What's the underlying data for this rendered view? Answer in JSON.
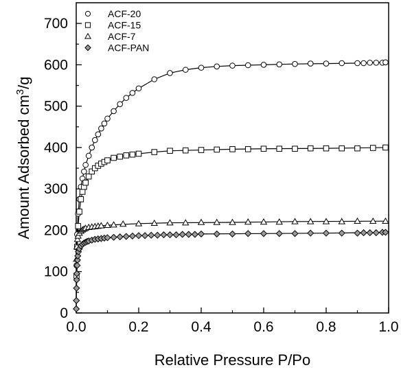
{
  "chart_data": {
    "type": "scatter",
    "xlabel": "Relative Pressure P/Po",
    "ylabel_main": "Amount Adsorbed cm",
    "ylabel_sup": "3",
    "ylabel_tail": "/g",
    "xlim": [
      0.0,
      1.0
    ],
    "ylim": [
      0,
      750
    ],
    "x_ticks": [
      "0.0",
      "0.2",
      "0.4",
      "0.6",
      "0.8",
      "1.0"
    ],
    "y_ticks": [
      "0",
      "100",
      "200",
      "300",
      "400",
      "500",
      "600",
      "700"
    ],
    "legend_position": "top-left",
    "series": [
      {
        "name": "ACF-20",
        "marker": "circle",
        "x": [
          0.001,
          0.003,
          0.006,
          0.01,
          0.015,
          0.02,
          0.025,
          0.03,
          0.04,
          0.05,
          0.06,
          0.07,
          0.08,
          0.09,
          0.1,
          0.12,
          0.14,
          0.16,
          0.18,
          0.2,
          0.25,
          0.3,
          0.35,
          0.4,
          0.45,
          0.5,
          0.55,
          0.6,
          0.65,
          0.7,
          0.75,
          0.8,
          0.85,
          0.9,
          0.92,
          0.94,
          0.96,
          0.98,
          0.99
        ],
        "y": [
          115,
          190,
          240,
          275,
          305,
          325,
          342,
          358,
          380,
          400,
          418,
          432,
          446,
          458,
          470,
          488,
          505,
          520,
          532,
          543,
          565,
          580,
          588,
          593,
          596,
          598,
          599,
          600,
          601,
          602,
          603,
          603,
          604,
          604,
          604,
          605,
          605,
          605,
          606
        ],
        "curve_x": [
          0.001,
          0.003,
          0.006,
          0.01,
          0.015,
          0.02,
          0.025,
          0.03,
          0.04,
          0.05,
          0.06,
          0.07,
          0.08,
          0.09,
          0.1,
          0.12,
          0.14,
          0.16,
          0.18,
          0.2,
          0.25,
          0.3,
          0.35,
          0.4,
          0.45,
          0.5,
          0.55,
          0.6,
          0.7,
          0.8,
          0.9,
          0.99
        ],
        "curve_y": [
          115,
          190,
          240,
          275,
          305,
          325,
          342,
          358,
          380,
          400,
          418,
          432,
          446,
          458,
          470,
          488,
          505,
          520,
          532,
          543,
          565,
          580,
          588,
          593,
          596,
          598,
          599,
          600,
          602,
          603,
          604,
          606
        ]
      },
      {
        "name": "ACF-15",
        "marker": "square",
        "x": [
          0.001,
          0.003,
          0.006,
          0.01,
          0.015,
          0.02,
          0.025,
          0.03,
          0.04,
          0.05,
          0.06,
          0.07,
          0.08,
          0.09,
          0.1,
          0.12,
          0.14,
          0.16,
          0.18,
          0.2,
          0.25,
          0.3,
          0.35,
          0.4,
          0.45,
          0.5,
          0.55,
          0.6,
          0.65,
          0.7,
          0.75,
          0.8,
          0.85,
          0.9,
          0.95,
          0.99
        ],
        "y": [
          90,
          160,
          210,
          245,
          275,
          293,
          305,
          315,
          330,
          342,
          350,
          356,
          361,
          365,
          369,
          375,
          378,
          381,
          383,
          385,
          389,
          392,
          393,
          394,
          395,
          396,
          396,
          397,
          397,
          397,
          398,
          398,
          398,
          398,
          399,
          400
        ],
        "curve_x": [
          0.001,
          0.003,
          0.006,
          0.01,
          0.015,
          0.02,
          0.025,
          0.03,
          0.04,
          0.05,
          0.06,
          0.07,
          0.08,
          0.1,
          0.12,
          0.14,
          0.16,
          0.2,
          0.25,
          0.3,
          0.4,
          0.5,
          0.6,
          0.8,
          0.99
        ],
        "curve_y": [
          90,
          160,
          210,
          245,
          275,
          293,
          305,
          315,
          330,
          342,
          350,
          356,
          361,
          369,
          375,
          378,
          381,
          385,
          389,
          392,
          394,
          396,
          397,
          398,
          400
        ]
      },
      {
        "name": "ACF-7",
        "marker": "triangle",
        "x": [
          0.001,
          0.002,
          0.004,
          0.006,
          0.01,
          0.015,
          0.02,
          0.025,
          0.03,
          0.04,
          0.05,
          0.06,
          0.07,
          0.08,
          0.1,
          0.12,
          0.15,
          0.2,
          0.25,
          0.3,
          0.35,
          0.4,
          0.45,
          0.5,
          0.55,
          0.6,
          0.65,
          0.7,
          0.75,
          0.8,
          0.85,
          0.9,
          0.95,
          0.99
        ],
        "y": [
          130,
          160,
          178,
          186,
          193,
          198,
          201,
          203,
          205,
          207,
          208,
          209,
          210,
          211,
          212,
          213,
          215,
          216,
          217,
          218,
          218,
          219,
          219,
          219,
          220,
          220,
          220,
          221,
          221,
          221,
          221,
          222,
          222,
          222
        ],
        "curve_x": [
          0.001,
          0.002,
          0.004,
          0.006,
          0.01,
          0.015,
          0.02,
          0.03,
          0.05,
          0.08,
          0.12,
          0.2,
          0.3,
          0.5,
          0.7,
          0.99
        ],
        "curve_y": [
          130,
          160,
          178,
          186,
          193,
          198,
          201,
          205,
          208,
          211,
          213,
          216,
          218,
          219,
          221,
          222
        ]
      },
      {
        "name": "ACF-PAN",
        "marker": "diamond",
        "x": [
          0.0002,
          0.0005,
          0.001,
          0.0015,
          0.002,
          0.003,
          0.004,
          0.005,
          0.007,
          0.01,
          0.015,
          0.02,
          0.025,
          0.03,
          0.035,
          0.04,
          0.05,
          0.06,
          0.07,
          0.08,
          0.09,
          0.1,
          0.12,
          0.14,
          0.16,
          0.18,
          0.2,
          0.22,
          0.24,
          0.26,
          0.28,
          0.3,
          0.32,
          0.34,
          0.36,
          0.38,
          0.4,
          0.45,
          0.5,
          0.55,
          0.6,
          0.65,
          0.7,
          0.75,
          0.8,
          0.85,
          0.9,
          0.92,
          0.94,
          0.96,
          0.98,
          0.99
        ],
        "y": [
          10,
          30,
          60,
          80,
          95,
          115,
          128,
          138,
          148,
          155,
          162,
          166,
          169,
          171,
          173,
          174,
          176,
          178,
          179,
          180,
          181,
          182,
          183,
          184,
          185,
          186,
          187,
          187,
          188,
          188,
          189,
          189,
          189,
          190,
          190,
          190,
          191,
          191,
          191,
          192,
          192,
          192,
          192,
          193,
          193,
          193,
          193,
          194,
          194,
          194,
          195,
          195
        ],
        "curve_x": [
          0.0002,
          0.0005,
          0.001,
          0.002,
          0.003,
          0.005,
          0.007,
          0.01,
          0.015,
          0.02,
          0.03,
          0.04,
          0.06,
          0.08,
          0.1,
          0.15,
          0.2,
          0.3,
          0.4,
          0.6,
          0.8,
          0.99
        ],
        "curve_y": [
          10,
          30,
          60,
          95,
          115,
          138,
          148,
          155,
          162,
          166,
          171,
          174,
          178,
          180,
          182,
          185,
          187,
          189,
          191,
          192,
          193,
          195
        ]
      }
    ]
  }
}
